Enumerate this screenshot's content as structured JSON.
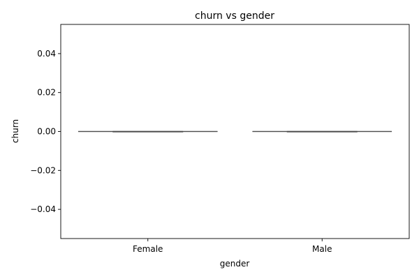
{
  "chart_data": {
    "type": "box",
    "title": "churn vs gender",
    "xlabel": "gender",
    "ylabel": "churn",
    "categories": [
      "Female",
      "Male"
    ],
    "boxes": [
      {
        "category": "Female",
        "min": 0.0,
        "q1": 0.0,
        "median": 0.0,
        "q3": 0.0,
        "max": 0.0
      },
      {
        "category": "Male",
        "min": 0.0,
        "q1": 0.0,
        "median": 0.0,
        "q3": 0.0,
        "max": 0.0
      }
    ],
    "ylim": [
      -0.055,
      0.055
    ],
    "yticks": [
      -0.04,
      -0.02,
      0.0,
      0.02,
      0.04
    ],
    "ytick_labels": [
      "−0.04",
      "−0.02",
      "0.00",
      "0.02",
      "0.04"
    ],
    "grid": false,
    "colors": {
      "box_line": "#4d4d4d",
      "axis": "#000000"
    }
  }
}
